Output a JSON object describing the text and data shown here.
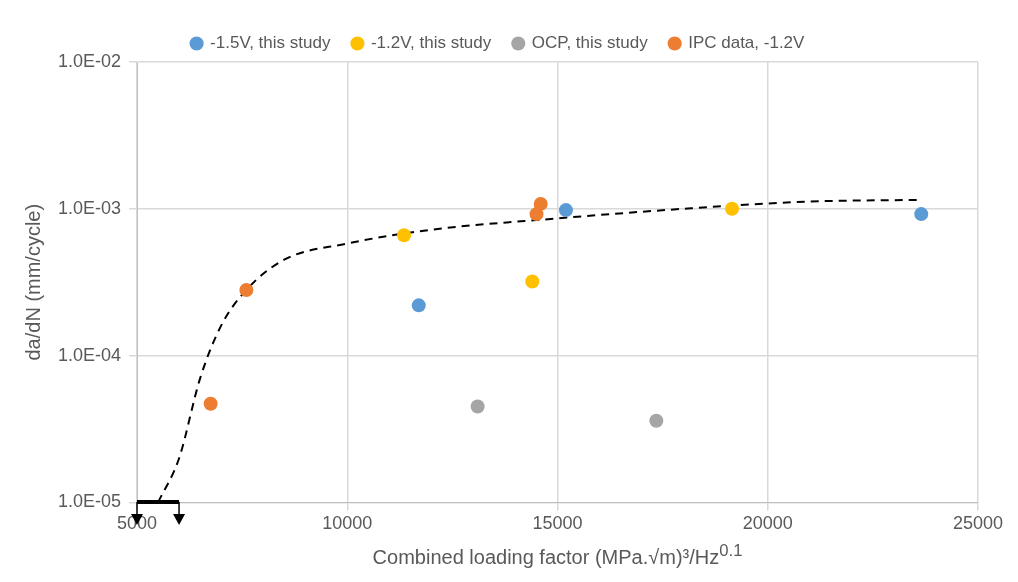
{
  "chart_data": {
    "type": "scatter",
    "xlabel": "Combined loading factor (MPa.√m)³/Hz$^{0.1}$",
    "ylabel": "da/dN (mm/cycle)",
    "log": "y",
    "grid": true,
    "legend": "top",
    "marker": "circle",
    "xlim": [
      5000,
      25000
    ],
    "xticks": [
      5000,
      10000,
      15000,
      20000,
      25000
    ],
    "ylim": [
      1e-05,
      0.01
    ],
    "yticks": [
      {
        "value": 1e-05,
        "label": "1.0E-05"
      },
      {
        "value": 0.0001,
        "label": "1.0E-04"
      },
      {
        "value": 0.001,
        "label": "1.0E-03"
      },
      {
        "value": 0.01,
        "label": "1.0E-02"
      }
    ],
    "series": [
      {
        "name": "-1.5V, this study",
        "color": "#5b9bd5",
        "x": [
          11700,
          15200,
          23650
        ],
        "values": [
          0.00022,
          0.00098,
          0.00092
        ]
      },
      {
        "name": "-1.2V, this study",
        "color": "#ffc000",
        "x": [
          11350,
          14400,
          19150
        ],
        "values": [
          0.00066,
          0.00032,
          0.001
        ]
      },
      {
        "name": "OCP, this study",
        "color": "#a5a5a5",
        "x": [
          13100,
          17350
        ],
        "values": [
          4.5e-05,
          3.6e-05
        ]
      },
      {
        "name": "IPC data, -1.2V",
        "color": "#ed7d31",
        "x": [
          6750,
          7600,
          14500,
          14600
        ],
        "values": [
          4.7e-05,
          0.00028,
          0.00092,
          0.00108
        ]
      },
      {
        "type": "line",
        "color": "#000000",
        "line_style": "dashed",
        "marker": "none",
        "x": [
          5500,
          6000,
          6500,
          7000,
          7600,
          8500,
          10000,
          12000,
          15000,
          18000,
          21000,
          23600
        ],
        "values": [
          1e-05,
          2e-05,
          7e-05,
          0.00016,
          0.00028,
          0.00045,
          0.00058,
          0.00072,
          0.00086,
          0.001,
          0.00112,
          0.00115
        ]
      }
    ]
  }
}
